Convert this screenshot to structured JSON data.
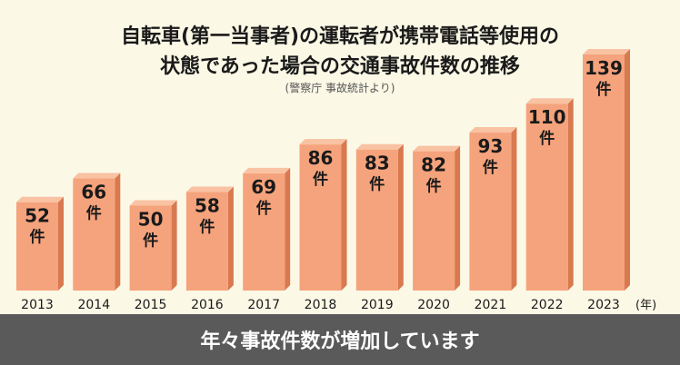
{
  "title_line1": "自転車(第一当事者)の運転者が携帯電話等使用の",
  "title_line2": "状態であった場合の交通事故件数の推移",
  "source": "(警察庁 事故統計より)",
  "caption": "年々事故件数が増加しています",
  "unit_label": "件",
  "colors": {
    "bar_front": "#f5a37c",
    "bar_side": "#d8794f",
    "bar_top": "#f9c2a3",
    "background": "#fbf8e6",
    "caption_bg": "#5a5a5a"
  },
  "chart_data": {
    "type": "bar",
    "title": "自転車(第一当事者)の運転者が携帯電話等使用の状態であった場合の交通事故件数の推移",
    "categories": [
      "2013",
      "2014",
      "2015",
      "2016",
      "2017",
      "2018",
      "2019",
      "2020",
      "2021",
      "2022",
      "2023"
    ],
    "values": [
      52,
      66,
      50,
      58,
      69,
      86,
      83,
      82,
      93,
      110,
      139
    ],
    "value_unit": "件",
    "xlabel": "(年)",
    "ylabel": "",
    "ylim": [
      0,
      139
    ]
  }
}
